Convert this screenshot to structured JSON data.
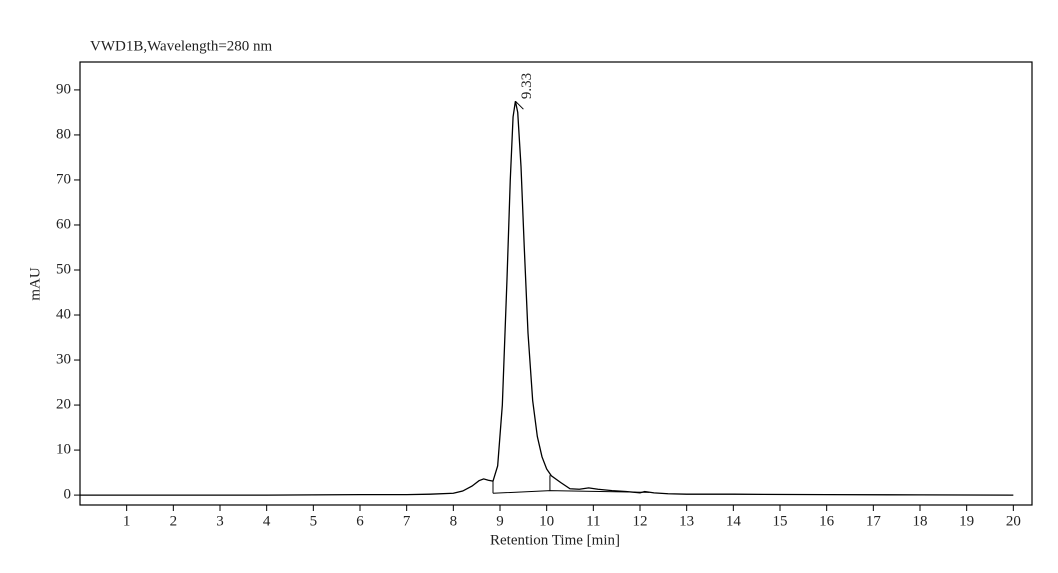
{
  "chart_data": {
    "type": "line",
    "title": "VWD1B,Wavelength=280 nm",
    "x_label": "Retention Time [min]",
    "y_label": "mAU",
    "x": [
      0,
      2,
      4,
      6,
      7,
      7.5,
      8,
      8.2,
      8.4,
      8.55,
      8.65,
      8.75,
      8.85,
      8.95,
      9.05,
      9.15,
      9.22,
      9.28,
      9.33,
      9.38,
      9.45,
      9.52,
      9.6,
      9.7,
      9.8,
      9.9,
      10.0,
      10.1,
      10.3,
      10.5,
      10.7,
      10.9,
      11.1,
      11.4,
      11.7,
      12.0,
      12.1,
      12.3,
      12.6,
      13,
      14,
      16,
      18,
      20
    ],
    "values": [
      0,
      0,
      0,
      0.1,
      0.1,
      0.2,
      0.4,
      0.9,
      2.0,
      3.2,
      3.6,
      3.3,
      3.1,
      6.5,
      20,
      48,
      70,
      84,
      87.5,
      85,
      73,
      55,
      36,
      21,
      13,
      8.5,
      5.8,
      4.3,
      2.8,
      1.4,
      1.3,
      1.6,
      1.3,
      1.0,
      0.8,
      0.5,
      0.8,
      0.5,
      0.3,
      0.2,
      0.2,
      0.1,
      0.05,
      0
    ],
    "color": "#000000",
    "baseline": {
      "x": [
        8.85,
        10.07,
        12.2
      ],
      "values": [
        0.4,
        1.0,
        0.6
      ]
    },
    "drop_lines": [
      {
        "x": 8.85,
        "bottom": 0.4,
        "top": 3.1
      },
      {
        "x": 10.07,
        "bottom": 1.0,
        "top": 4.4
      }
    ],
    "peak_label": {
      "text": "9.33",
      "x": 9.33,
      "y": 87.5
    },
    "xlim": [
      0,
      20.4
    ],
    "ylim": [
      -2.2,
      96.2
    ],
    "xticks": [
      1,
      2,
      3,
      4,
      5,
      6,
      7,
      8,
      9,
      10,
      11,
      12,
      13,
      14,
      15,
      16,
      17,
      18,
      19,
      20
    ],
    "yticks": [
      0,
      10,
      20,
      30,
      40,
      50,
      60,
      70,
      80,
      90
    ]
  }
}
